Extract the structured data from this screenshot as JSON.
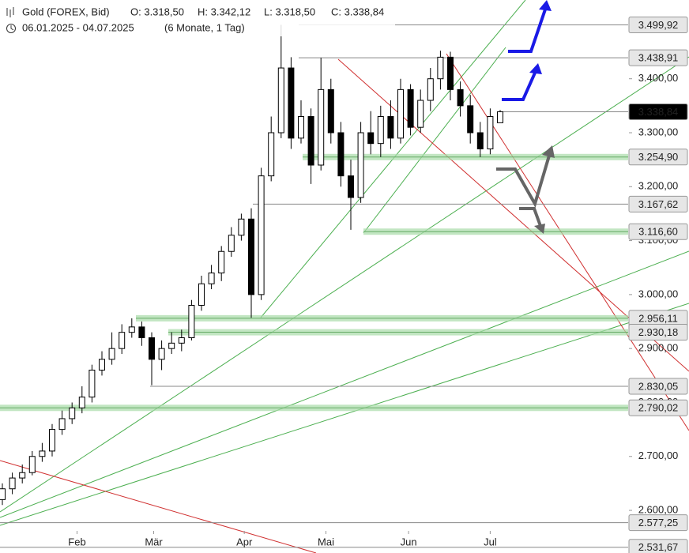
{
  "chart_data": {
    "type": "candlestick",
    "title": "Gold (FOREX, Bid)",
    "ohlc_header": [
      "O: 3.318,50",
      "H: 3.342,12",
      "L: 3.318,50",
      "C: 3.338,84"
    ],
    "subtitle": "06.01.2025 - 04.07.2025",
    "period": "(6 Monate, 1 Tag)",
    "ohlc": [
      [
        2620,
        2650,
        2610,
        2640
      ],
      [
        2640,
        2670,
        2630,
        2660
      ],
      [
        2660,
        2685,
        2650,
        2670
      ],
      [
        2670,
        2710,
        2665,
        2700
      ],
      [
        2700,
        2725,
        2690,
        2710
      ],
      [
        2710,
        2760,
        2700,
        2750
      ],
      [
        2750,
        2785,
        2740,
        2770
      ],
      [
        2770,
        2800,
        2760,
        2790
      ],
      [
        2790,
        2830,
        2780,
        2810
      ],
      [
        2810,
        2870,
        2800,
        2860
      ],
      [
        2860,
        2895,
        2850,
        2880
      ],
      [
        2880,
        2930,
        2870,
        2900
      ],
      [
        2900,
        2945,
        2890,
        2930
      ],
      [
        2930,
        2956,
        2920,
        2940
      ],
      [
        2940,
        2950,
        2905,
        2920
      ],
      [
        2920,
        2930,
        2832,
        2880
      ],
      [
        2880,
        2915,
        2860,
        2900
      ],
      [
        2900,
        2930,
        2890,
        2910
      ],
      [
        2910,
        2935,
        2895,
        2920
      ],
      [
        2920,
        2990,
        2915,
        2980
      ],
      [
        2980,
        3035,
        2970,
        3020
      ],
      [
        3020,
        3055,
        3010,
        3040
      ],
      [
        3040,
        3090,
        3025,
        3080
      ],
      [
        3080,
        3125,
        3070,
        3110
      ],
      [
        3110,
        3150,
        3100,
        3140
      ],
      [
        3140,
        3160,
        2957,
        3000
      ],
      [
        3000,
        3235,
        2990,
        3220
      ],
      [
        3220,
        3330,
        3210,
        3300
      ],
      [
        3300,
        3500,
        3290,
        3420
      ],
      [
        3420,
        3440,
        3270,
        3290
      ],
      [
        3290,
        3360,
        3280,
        3330
      ],
      [
        3330,
        3345,
        3205,
        3240
      ],
      [
        3240,
        3439,
        3230,
        3380
      ],
      [
        3380,
        3400,
        3280,
        3300
      ],
      [
        3300,
        3320,
        3200,
        3220
      ],
      [
        3220,
        3250,
        3120,
        3180
      ],
      [
        3180,
        3320,
        3170,
        3300
      ],
      [
        3300,
        3340,
        3260,
        3280
      ],
      [
        3280,
        3350,
        3255,
        3330
      ],
      [
        3330,
        3360,
        3270,
        3290
      ],
      [
        3290,
        3400,
        3280,
        3380
      ],
      [
        3380,
        3390,
        3295,
        3310
      ],
      [
        3310,
        3380,
        3300,
        3360
      ],
      [
        3360,
        3420,
        3340,
        3400
      ],
      [
        3400,
        3452,
        3380,
        3440
      ],
      [
        3440,
        3450,
        3360,
        3380
      ],
      [
        3380,
        3395,
        3330,
        3350
      ],
      [
        3350,
        3370,
        3280,
        3300
      ],
      [
        3300,
        3320,
        3255,
        3270
      ],
      [
        3270,
        3345,
        3260,
        3330
      ],
      [
        3318.5,
        3342.12,
        3318.5,
        3338.84
      ]
    ],
    "xticks": [
      {
        "value": 7.5,
        "label": "Feb"
      },
      {
        "value": 15.2,
        "label": "Mär"
      },
      {
        "value": 24.3,
        "label": "Apr"
      },
      {
        "value": 32.5,
        "label": "Mai"
      },
      {
        "value": 40.8,
        "label": "Jun"
      },
      {
        "value": 49,
        "label": "Jul"
      }
    ],
    "ylim": [
      2521,
      3546
    ],
    "yticks": [
      {
        "value": 2600,
        "label": "2.600,00"
      },
      {
        "value": 2700,
        "label": "2.700,00"
      },
      {
        "value": 2800,
        "label": "2.800,00"
      },
      {
        "value": 2900,
        "label": "2.900,00"
      },
      {
        "value": 3000,
        "label": "3.000,00"
      },
      {
        "value": 3100,
        "label": "3.100,00"
      },
      {
        "value": 3200,
        "label": "3.200,00"
      },
      {
        "value": 3300,
        "label": "3.300,00"
      },
      {
        "value": 3400,
        "label": "3.400,00"
      }
    ],
    "levels": [
      {
        "value": 3499.92,
        "label": "3.499,92",
        "color": "#888888"
      },
      {
        "value": 3438.91,
        "label": "3.438,91",
        "color": "#888888"
      },
      {
        "value": 3338.84,
        "label": "3.338,84",
        "color": "#000000"
      },
      {
        "value": 3254.9,
        "label": "3.254,90",
        "color": "#a8dca8"
      },
      {
        "value": 3167.62,
        "label": "3.167,62",
        "color": "#888888"
      },
      {
        "value": 3116.6,
        "label": "3.116,60",
        "color": "#a8dca8"
      },
      {
        "value": 2956.11,
        "label": "2.956,11",
        "color": "#a8dca8"
      },
      {
        "value": 2930.18,
        "label": "2.930,18",
        "color": "#a8dca8"
      },
      {
        "value": 2830.05,
        "label": "2.830,05",
        "color": "#888888"
      },
      {
        "value": 2790.02,
        "label": "2.790,02",
        "color": "#a8dca8"
      },
      {
        "value": 2577.25,
        "label": "2.577,25",
        "color": "#888888"
      },
      {
        "value": 2531.67,
        "label": "2.531,67",
        "color": "#888888"
      }
    ]
  }
}
